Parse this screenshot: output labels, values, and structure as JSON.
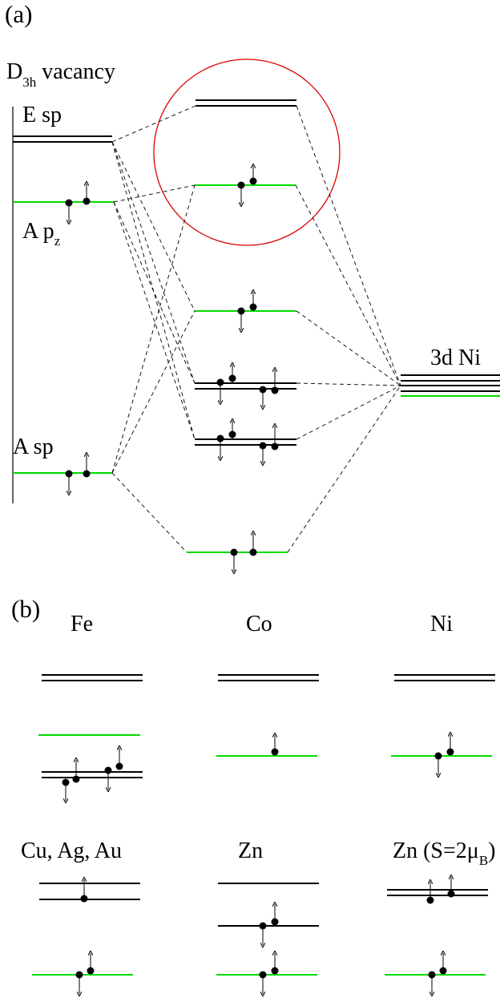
{
  "panel_a": {
    "label": "(a)",
    "vacancy_title": {
      "main": "D",
      "sub": "3h",
      "rest": " vacancy"
    },
    "level_labels": {
      "e_sp": "E sp",
      "a_pz": {
        "main": "A p",
        "sub": "z"
      },
      "a_sp": "A sp",
      "ni_3d": "3d Ni"
    }
  },
  "panel_b": {
    "label": "(b)",
    "titles": {
      "fe": "Fe",
      "co": "Co",
      "ni": "Ni",
      "cu": "Cu, Ag, Au",
      "zn": "Zn",
      "zn_spin": {
        "main": "Zn (S=2",
        "mu": "μ",
        "sub": "B",
        "close": ")"
      }
    }
  },
  "colors": {
    "black_level": "#000000",
    "green_level": "#00dd00",
    "circle": "#dd0000",
    "connector": "#000000"
  }
}
